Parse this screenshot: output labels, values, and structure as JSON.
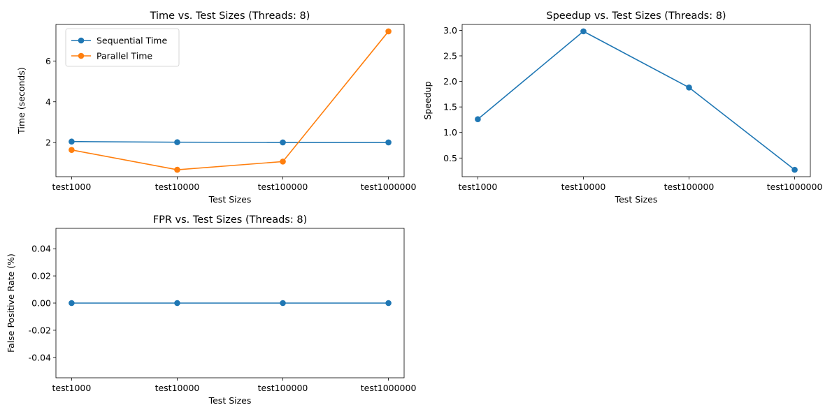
{
  "chart_data": [
    {
      "type": "line",
      "title": "Time vs. Test Sizes (Threads: 8)",
      "xlabel": "Test Sizes",
      "ylabel": "Time (seconds)",
      "categories": [
        "test1000",
        "test10000",
        "test100000",
        "test1000000"
      ],
      "series": [
        {
          "name": "Sequential Time",
          "color": "#1f77b4",
          "values": [
            2.05,
            2.02,
            2.01,
            2.01
          ]
        },
        {
          "name": "Parallel Time",
          "color": "#ff7f0e",
          "values": [
            1.64,
            0.67,
            1.07,
            7.45
          ]
        }
      ],
      "ylim": [
        0.33,
        7.79
      ],
      "yticks": [
        2,
        4,
        6
      ],
      "legend": "top-left",
      "grid": false
    },
    {
      "type": "line",
      "title": "Speedup vs. Test Sizes (Threads: 8)",
      "xlabel": "Test Sizes",
      "ylabel": "Speedup",
      "categories": [
        "test1000",
        "test10000",
        "test100000",
        "test1000000"
      ],
      "series": [
        {
          "color": "#1f77b4",
          "values": [
            1.26,
            2.98,
            1.88,
            0.27
          ]
        }
      ],
      "ylim": [
        0.135,
        3.115
      ],
      "yticks": [
        0.5,
        1.0,
        1.5,
        2.0,
        2.5,
        3.0
      ],
      "grid": false
    },
    {
      "type": "line",
      "title": "FPR vs. Test Sizes (Threads: 8)",
      "xlabel": "Test Sizes",
      "ylabel": "False Positive Rate (%)",
      "categories": [
        "test1000",
        "test10000",
        "test100000",
        "test1000000"
      ],
      "series": [
        {
          "color": "#1f77b4",
          "values": [
            0,
            0,
            0,
            0
          ]
        }
      ],
      "ylim": [
        -0.055,
        0.055
      ],
      "yticks": [
        -0.04,
        -0.02,
        0.0,
        0.02,
        0.04
      ],
      "grid": false
    }
  ]
}
